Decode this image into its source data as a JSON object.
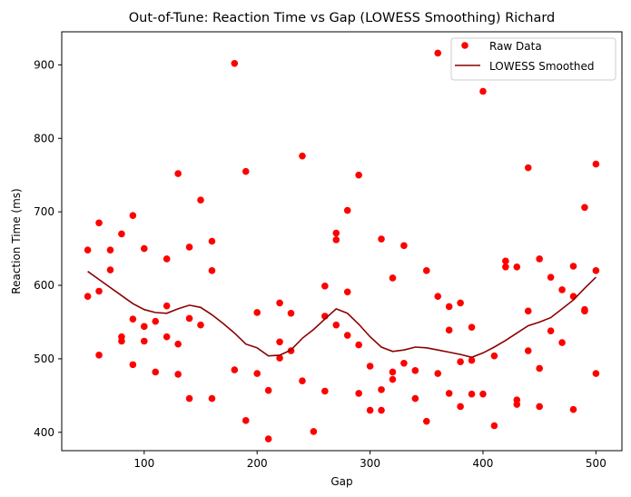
{
  "chart_data": {
    "type": "scatter",
    "title": "Out-of-Tune: Reaction Time vs Gap (LOWESS Smoothing) Richard",
    "xlabel": "Gap",
    "ylabel": "Reaction Time (ms)",
    "xlim": [
      27,
      523
    ],
    "ylim": [
      375,
      945
    ],
    "xticks": [
      100,
      200,
      300,
      400,
      500
    ],
    "yticks": [
      400,
      500,
      600,
      700,
      800,
      900
    ],
    "grid": false,
    "legend_position": "top-right",
    "colors": {
      "raw": "#ff0000",
      "smooth": "#8b0000"
    },
    "series": [
      {
        "name": "Raw Data",
        "kind": "scatter",
        "x": [
          50,
          50,
          60,
          60,
          60,
          70,
          70,
          80,
          80,
          80,
          90,
          90,
          90,
          100,
          100,
          100,
          110,
          110,
          120,
          120,
          120,
          130,
          130,
          130,
          140,
          140,
          140,
          150,
          150,
          160,
          160,
          160,
          180,
          180,
          190,
          190,
          200,
          200,
          210,
          210,
          220,
          220,
          220,
          230,
          230,
          240,
          240,
          250,
          260,
          260,
          260,
          270,
          270,
          270,
          280,
          280,
          280,
          290,
          290,
          290,
          300,
          300,
          310,
          310,
          310,
          320,
          320,
          320,
          330,
          330,
          340,
          340,
          350,
          350,
          360,
          360,
          360,
          370,
          370,
          370,
          380,
          380,
          380,
          390,
          390,
          390,
          400,
          400,
          410,
          410,
          420,
          420,
          430,
          430,
          430,
          440,
          440,
          440,
          450,
          450,
          450,
          460,
          460,
          470,
          470,
          480,
          480,
          480,
          490,
          490,
          490,
          500,
          500,
          500
        ],
        "y": [
          585,
          648,
          505,
          592,
          685,
          648,
          621,
          670,
          530,
          524,
          554,
          695,
          492,
          544,
          524,
          650,
          482,
          551,
          636,
          572,
          530,
          752,
          520,
          479,
          446,
          652,
          555,
          716,
          546,
          446,
          620,
          660,
          902,
          485,
          755,
          416,
          563,
          480,
          457,
          391,
          576,
          523,
          501,
          562,
          511,
          776,
          470,
          401,
          558,
          456,
          599,
          546,
          662,
          671,
          532,
          591,
          702,
          453,
          519,
          750,
          430,
          490,
          663,
          458,
          430,
          482,
          472,
          610,
          494,
          654,
          446,
          484,
          415,
          620,
          916,
          480,
          585,
          539,
          453,
          571,
          435,
          496,
          576,
          452,
          498,
          543,
          864,
          452,
          409,
          504,
          625,
          633,
          438,
          444,
          625,
          760,
          565,
          511,
          636,
          435,
          487,
          538,
          611,
          594,
          522,
          626,
          431,
          585,
          567,
          706,
          565,
          480,
          620,
          765
        ]
      },
      {
        "name": "LOWESS Smoothed",
        "kind": "line",
        "x": [
          50,
          60,
          70,
          80,
          90,
          100,
          110,
          120,
          130,
          140,
          150,
          160,
          170,
          180,
          190,
          200,
          210,
          220,
          230,
          240,
          250,
          260,
          270,
          280,
          290,
          300,
          310,
          320,
          330,
          340,
          350,
          360,
          370,
          380,
          390,
          400,
          410,
          420,
          430,
          440,
          450,
          460,
          470,
          480,
          490,
          500
        ],
        "y": [
          619,
          608,
          597,
          586,
          575,
          567,
          563,
          562,
          568,
          573,
          570,
          560,
          548,
          535,
          520,
          515,
          504,
          505,
          512,
          528,
          540,
          554,
          568,
          562,
          547,
          530,
          516,
          510,
          512,
          516,
          515,
          512,
          509,
          506,
          502,
          508,
          516,
          525,
          535,
          545,
          550,
          556,
          568,
          580,
          596,
          611
        ]
      }
    ]
  }
}
